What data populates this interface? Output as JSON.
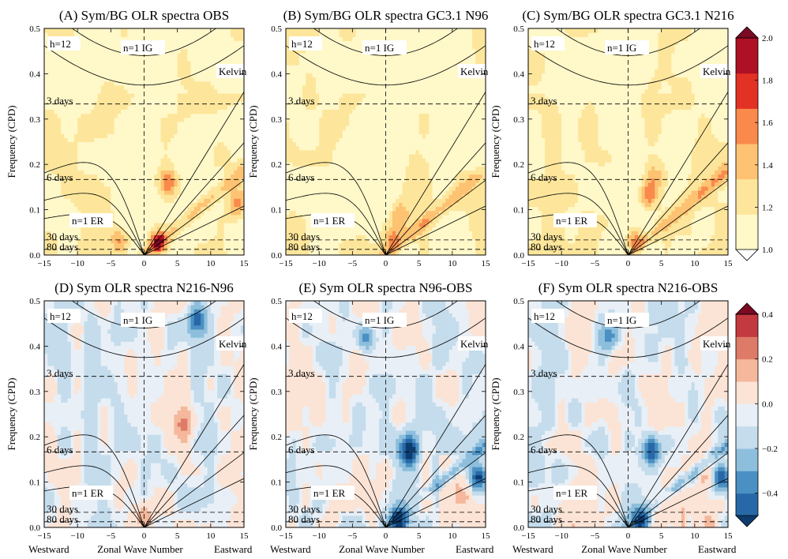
{
  "chart_data": [
    {
      "type": "heatmap",
      "title": "(A) Sym/BG OLR spectra OBS",
      "kind": "ratio",
      "x_range": [
        -15,
        15
      ],
      "y_range": [
        0,
        0.5
      ],
      "features": [
        {
          "x": 3.5,
          "y": 0.16,
          "v": 1.85
        },
        {
          "x": 2,
          "y": 0.03,
          "v": 1.95
        },
        {
          "x": -3.5,
          "y": 0.03,
          "v": 1.75
        },
        {
          "x": 14,
          "y": 0.11,
          "v": 1.7
        }
      ]
    },
    {
      "type": "heatmap",
      "title": "(B) Sym/BG OLR spectra GC3.1 N96",
      "kind": "ratio",
      "x_range": [
        -15,
        15
      ],
      "y_range": [
        0,
        0.5
      ],
      "features": [
        {
          "x": 1,
          "y": 0.035,
          "v": 1.75
        },
        {
          "x": 2,
          "y": 0.09,
          "v": 1.6
        },
        {
          "x": 5,
          "y": 0.2,
          "v": 1.5
        }
      ]
    },
    {
      "type": "heatmap",
      "title": "(C) Sym/BG OLR spectra GC3.1 N216",
      "kind": "ratio",
      "x_range": [
        -15,
        15
      ],
      "y_range": [
        0,
        0.5
      ],
      "features": [
        {
          "x": 1,
          "y": 0.035,
          "v": 1.85
        },
        {
          "x": 3,
          "y": 0.13,
          "v": 1.75
        },
        {
          "x": 4,
          "y": 0.17,
          "v": 1.6
        }
      ]
    },
    {
      "type": "heatmap",
      "title": "(D) Sym OLR spectra N216-N96",
      "kind": "difference",
      "x_range": [
        -15,
        15
      ],
      "y_range": [
        0,
        0.5
      ],
      "features": [
        {
          "x": 6,
          "y": 0.23,
          "v": 0.2
        },
        {
          "x": 8,
          "y": 0.46,
          "v": -0.3
        },
        {
          "x": 0,
          "y": 0.03,
          "v": 0.15
        }
      ]
    },
    {
      "type": "heatmap",
      "title": "(E) Sym OLR spectra N96-OBS",
      "kind": "difference",
      "x_range": [
        -15,
        15
      ],
      "y_range": [
        0,
        0.5
      ],
      "features": [
        {
          "x": 3.5,
          "y": 0.17,
          "v": -0.45
        },
        {
          "x": 2,
          "y": 0.015,
          "v": -0.45
        },
        {
          "x": 14,
          "y": 0.11,
          "v": -0.45
        },
        {
          "x": -3,
          "y": 0.42,
          "v": -0.25
        }
      ]
    },
    {
      "type": "heatmap",
      "title": "(F) Sym OLR spectra N216-OBS",
      "kind": "difference",
      "x_range": [
        -15,
        15
      ],
      "y_range": [
        0,
        0.5
      ],
      "features": [
        {
          "x": 3.5,
          "y": 0.17,
          "v": -0.4
        },
        {
          "x": 2,
          "y": 0.015,
          "v": -0.45
        },
        {
          "x": 14,
          "y": 0.11,
          "v": -0.45
        },
        {
          "x": -3,
          "y": 0.42,
          "v": -0.2
        }
      ]
    }
  ],
  "axes": {
    "ylabel": "Frequency (CPD)",
    "x_ticks": [
      "−15",
      "−10",
      "−5",
      "0",
      "5",
      "10",
      "15"
    ],
    "y_ticks": [
      "0.0",
      "0.1",
      "0.2",
      "0.3",
      "0.4",
      "0.5"
    ],
    "x_footer": {
      "left": "Westward",
      "center": "Zonal Wave Number",
      "right": "Eastward"
    }
  },
  "annotations": {
    "h12": "h=12",
    "ig": "n=1 IG",
    "kelvin": "Kelvin",
    "er": "n=1 ER",
    "d3": "3 days",
    "d6": "6 days",
    "d30": "30 days",
    "d80": "80 days"
  },
  "colorbar_ratio": {
    "ticks": [
      "1.0",
      "1.2",
      "1.4",
      "1.6",
      "1.8",
      "2.0"
    ],
    "colors": [
      "#fff8c9",
      "#fde69b",
      "#fdc372",
      "#f98a4c",
      "#e23125",
      "#ae1025",
      "#7c0a22"
    ],
    "under": "#ffffff"
  },
  "colorbar_diff": {
    "ticks": [
      "−0.4",
      "−0.2",
      "0.0",
      "0.2",
      "0.4"
    ],
    "colors": [
      "#0d3c6e",
      "#2868a8",
      "#4b90c3",
      "#8dbfdd",
      "#c4dcec",
      "#e8eff6",
      "#fbe4d6",
      "#f5b89c",
      "#de7b68",
      "#c2393f",
      "#7c0a22"
    ]
  }
}
